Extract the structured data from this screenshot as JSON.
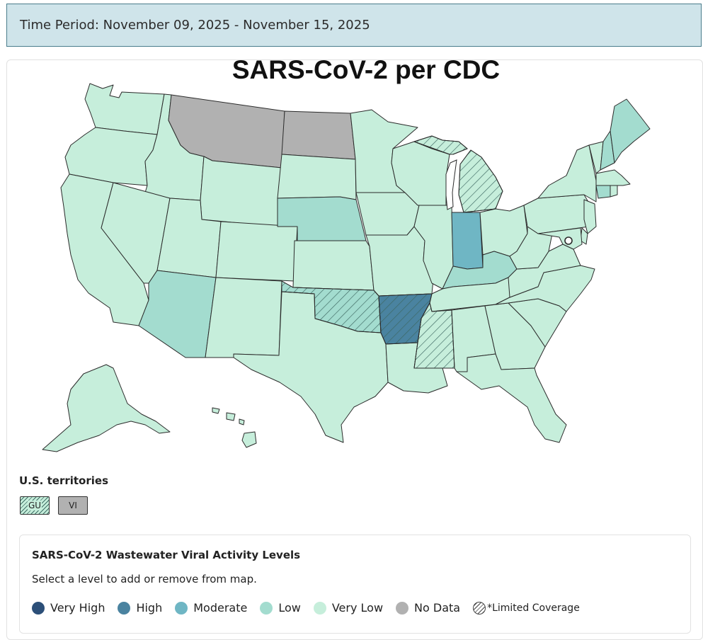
{
  "header": {
    "time_period": "Time Period: November 09, 2025 - November 15, 2025"
  },
  "map": {
    "title": "SARS-CoV-2 per CDC"
  },
  "colors": {
    "very_high": "#2c4f78",
    "high": "#4a83a0",
    "moderate": "#6fb6c4",
    "low": "#a3dccf",
    "very_low": "#c6eedb",
    "no_data": "#b1b1b1",
    "border": "#2b2b2b"
  },
  "states": [
    {
      "name": "Washington",
      "level": "very_low"
    },
    {
      "name": "Oregon",
      "level": "very_low"
    },
    {
      "name": "California",
      "level": "very_low"
    },
    {
      "name": "Idaho",
      "level": "very_low"
    },
    {
      "name": "Nevada",
      "level": "very_low"
    },
    {
      "name": "Montana",
      "level": "no_data"
    },
    {
      "name": "Wyoming",
      "level": "very_low"
    },
    {
      "name": "Utah",
      "level": "very_low"
    },
    {
      "name": "Arizona",
      "level": "low"
    },
    {
      "name": "Colorado",
      "level": "very_low"
    },
    {
      "name": "New Mexico",
      "level": "very_low"
    },
    {
      "name": "North Dakota",
      "level": "no_data"
    },
    {
      "name": "South Dakota",
      "level": "very_low"
    },
    {
      "name": "Nebraska",
      "level": "low"
    },
    {
      "name": "Kansas",
      "level": "very_low"
    },
    {
      "name": "Oklahoma",
      "level": "low",
      "limited": true
    },
    {
      "name": "Texas",
      "level": "very_low"
    },
    {
      "name": "Minnesota",
      "level": "very_low"
    },
    {
      "name": "Iowa",
      "level": "very_low"
    },
    {
      "name": "Missouri",
      "level": "very_low"
    },
    {
      "name": "Arkansas",
      "level": "high",
      "limited": true
    },
    {
      "name": "Louisiana",
      "level": "very_low"
    },
    {
      "name": "Wisconsin",
      "level": "very_low"
    },
    {
      "name": "Illinois",
      "level": "very_low"
    },
    {
      "name": "Michigan",
      "level": "very_low",
      "limited": true
    },
    {
      "name": "Indiana",
      "level": "moderate"
    },
    {
      "name": "Ohio",
      "level": "very_low"
    },
    {
      "name": "Kentucky",
      "level": "low"
    },
    {
      "name": "Tennessee",
      "level": "very_low"
    },
    {
      "name": "Mississippi",
      "level": "very_low",
      "limited": true
    },
    {
      "name": "Alabama",
      "level": "very_low"
    },
    {
      "name": "Georgia",
      "level": "very_low"
    },
    {
      "name": "Florida",
      "level": "very_low"
    },
    {
      "name": "South Carolina",
      "level": "very_low"
    },
    {
      "name": "North Carolina",
      "level": "very_low"
    },
    {
      "name": "Virginia",
      "level": "very_low"
    },
    {
      "name": "West Virginia",
      "level": "very_low"
    },
    {
      "name": "Pennsylvania",
      "level": "very_low"
    },
    {
      "name": "New York",
      "level": "very_low"
    },
    {
      "name": "Vermont",
      "level": "very_low"
    },
    {
      "name": "New Hampshire",
      "level": "low"
    },
    {
      "name": "Maine",
      "level": "low"
    },
    {
      "name": "Massachusetts",
      "level": "very_low"
    },
    {
      "name": "Connecticut",
      "level": "low"
    },
    {
      "name": "Rhode Island",
      "level": "very_low"
    },
    {
      "name": "New Jersey",
      "level": "very_low"
    },
    {
      "name": "Delaware",
      "level": "very_low"
    },
    {
      "name": "Maryland",
      "level": "very_low"
    },
    {
      "name": "Alaska",
      "level": "very_low"
    },
    {
      "name": "Hawaii",
      "level": "very_low"
    }
  ],
  "territories": {
    "label": "U.S. territories",
    "items": [
      {
        "code": "GU",
        "level": "very_low",
        "limited": true
      },
      {
        "code": "VI",
        "level": "no_data"
      }
    ]
  },
  "legend": {
    "title": "SARS-CoV-2 Wastewater Viral Activity Levels",
    "subtitle": "Select a level to add or remove from map.",
    "items": [
      {
        "label": "Very High",
        "color": "#2c4f78"
      },
      {
        "label": "High",
        "color": "#4a83a0"
      },
      {
        "label": "Moderate",
        "color": "#6fb6c4"
      },
      {
        "label": "Low",
        "color": "#a3dccf"
      },
      {
        "label": "Very Low",
        "color": "#c6eedb"
      },
      {
        "label": "No Data",
        "color": "#b1b1b1"
      }
    ],
    "limited_label": "*Limited Coverage"
  }
}
